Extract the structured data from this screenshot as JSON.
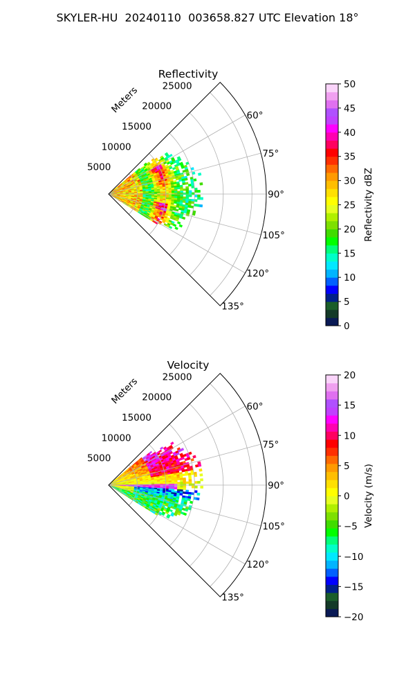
{
  "title": "SKYLER-HU  20240110  003658.827 UTC Elevation 18°",
  "chart_data": [
    {
      "type": "heatmap",
      "projection": "polar-sector",
      "title": "Reflectivity",
      "radial_label": "Meters",
      "rlim": [
        0,
        27500
      ],
      "radial_ticks": [
        5000,
        10000,
        15000,
        20000,
        25000
      ],
      "radial_tick_labels": [
        "5000",
        "10000",
        "15000",
        "20000",
        "25000"
      ],
      "azimuth_range_deg": [
        45,
        135
      ],
      "azimuth_ticks_deg": [
        60,
        75,
        90,
        105,
        120,
        135
      ],
      "azimuth_tick_labels": [
        "60°",
        "75°",
        "90°",
        "105°",
        "120°",
        "135°"
      ],
      "grid": true,
      "data_extent": {
        "azimuth_deg": [
          50,
          122
        ],
        "range_m_max": 16500
      },
      "colorbar": {
        "label": "Reflectivity dBZ",
        "range": [
          0,
          50
        ],
        "ticks": [
          0,
          5,
          10,
          15,
          20,
          25,
          30,
          35,
          40,
          45,
          50
        ],
        "tick_labels": [
          "0",
          "5",
          "10",
          "15",
          "20",
          "25",
          "30",
          "35",
          "40",
          "45",
          "50"
        ],
        "colors": [
          "#0a1a55",
          "#143a28",
          "#1b5e2a",
          "#00208a",
          "#0000ff",
          "#0060ff",
          "#00b4ff",
          "#00e8ff",
          "#00ffc8",
          "#00ff7a",
          "#00ff00",
          "#40dc00",
          "#7ee000",
          "#b0f000",
          "#e6ff20",
          "#ffff00",
          "#ffe000",
          "#ffbe00",
          "#ff9a00",
          "#ff6a00",
          "#ff3000",
          "#ff0000",
          "#ff0060",
          "#ff00b0",
          "#ff00ff",
          "#c040ff",
          "#b050ff",
          "#e070f0",
          "#f0a0f0",
          "#fad4fa"
        ]
      }
    },
    {
      "type": "heatmap",
      "projection": "polar-sector",
      "title": "Velocity",
      "radial_label": "Meters",
      "rlim": [
        0,
        27500
      ],
      "radial_ticks": [
        5000,
        10000,
        15000,
        20000,
        25000
      ],
      "radial_tick_labels": [
        "5000",
        "10000",
        "15000",
        "20000",
        "25000"
      ],
      "azimuth_range_deg": [
        45,
        135
      ],
      "azimuth_ticks_deg": [
        60,
        75,
        90,
        105,
        120,
        135
      ],
      "azimuth_tick_labels": [
        "60°",
        "75°",
        "90°",
        "105°",
        "120°",
        "135°"
      ],
      "grid": true,
      "data_extent": {
        "azimuth_deg": [
          50,
          122
        ],
        "range_m_max": 16500
      },
      "colorbar": {
        "label": "Velocity (m/s)",
        "range": [
          -20,
          20
        ],
        "ticks": [
          -20,
          -15,
          -10,
          -5,
          0,
          5,
          10,
          15,
          20
        ],
        "tick_labels": [
          "−20",
          "−15",
          "−10",
          "−5",
          "0",
          "5",
          "10",
          "15",
          "20"
        ],
        "colors": [
          "#0a1a55",
          "#143a28",
          "#1b5e2a",
          "#00208a",
          "#0000ff",
          "#0060ff",
          "#00b4ff",
          "#00e8ff",
          "#00ffc8",
          "#00ff7a",
          "#00ff00",
          "#40dc00",
          "#7ee000",
          "#b0f000",
          "#e6ff20",
          "#ffff00",
          "#ffe000",
          "#ffbe00",
          "#ff9a00",
          "#ff6a00",
          "#ff3000",
          "#ff0000",
          "#ff0060",
          "#ff00b0",
          "#ff00ff",
          "#c040ff",
          "#b050ff",
          "#e070f0",
          "#f0a0f0",
          "#fad4fa"
        ]
      }
    }
  ]
}
